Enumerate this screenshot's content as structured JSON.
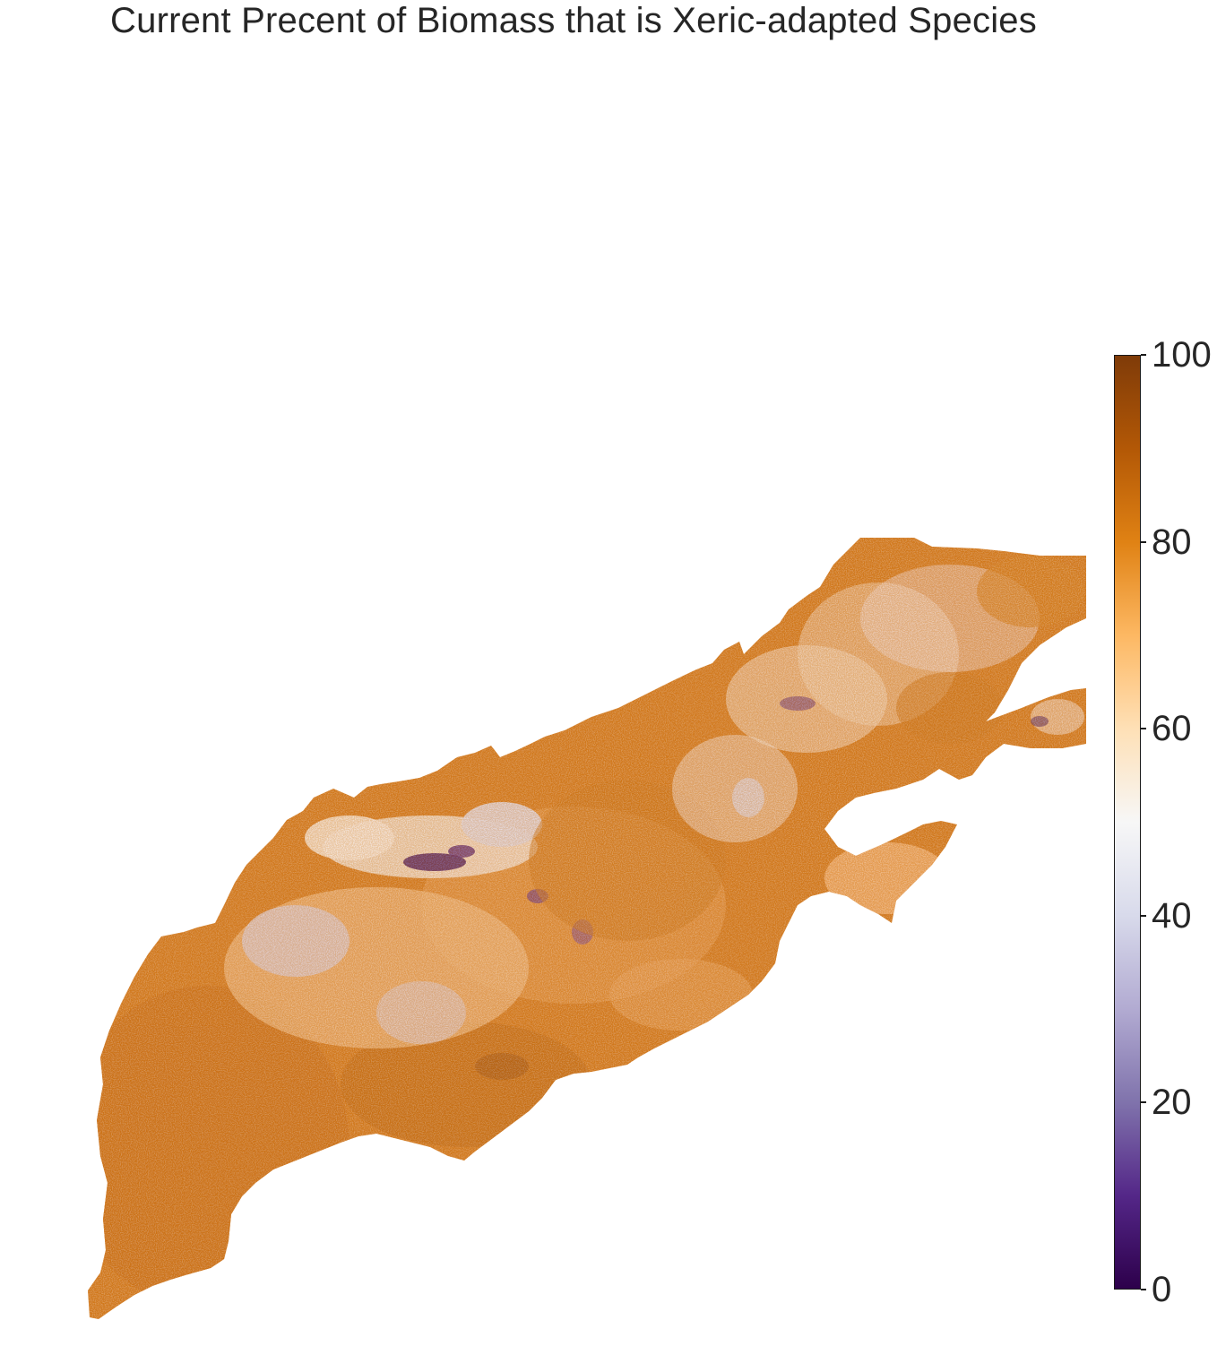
{
  "title": "Current Precent of Biomass that is Xeric-adapted Species",
  "colorbar": {
    "min": 0,
    "max": 100,
    "ticks": [
      "0",
      "20",
      "40",
      "60",
      "80",
      "100"
    ],
    "colormap": "PuOr_r",
    "stops": [
      "#2d004b",
      "#542788",
      "#8073ac",
      "#b2abd2",
      "#d8daeb",
      "#f7f7f7",
      "#fee0b6",
      "#fdb863",
      "#e08214",
      "#b35806",
      "#7f3b08"
    ]
  },
  "map": {
    "palette": {
      "dominant": "#d27a1c",
      "mid": "#f3b779",
      "light": "#fbe0bf",
      "low": "#dcdcec",
      "very_low": "#3b1063"
    }
  }
}
